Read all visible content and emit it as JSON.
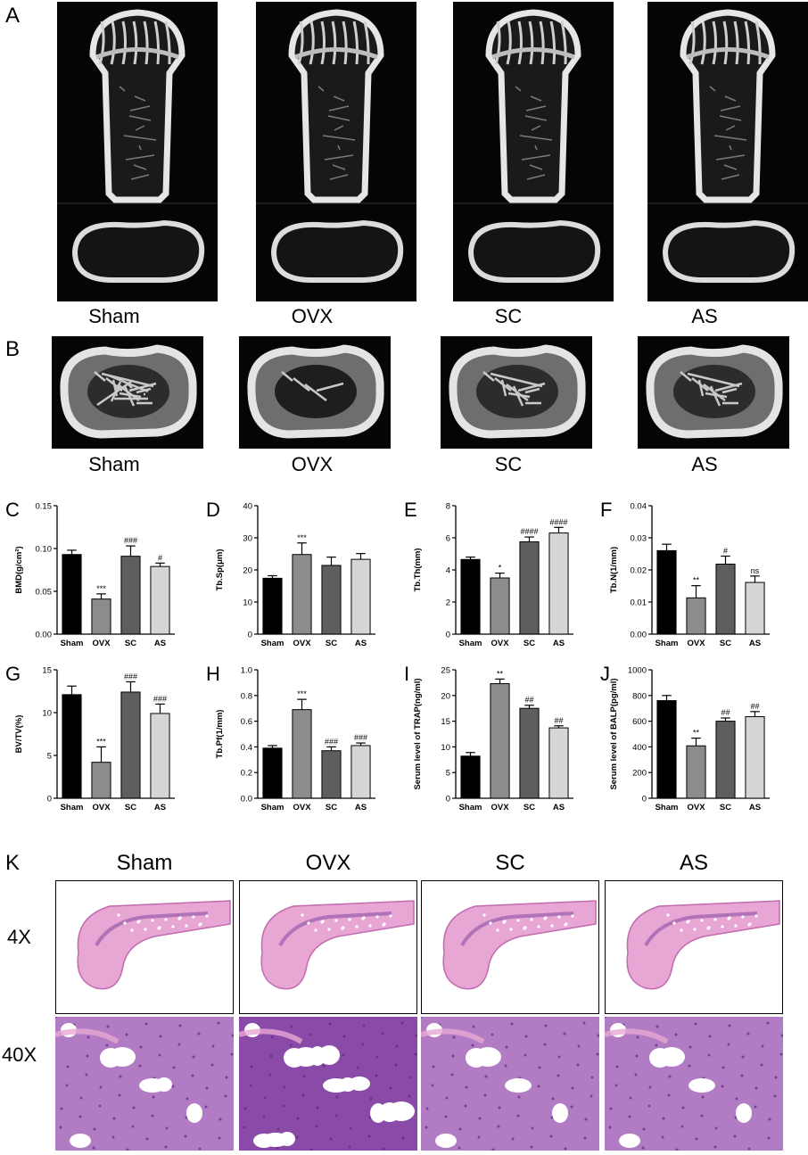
{
  "panels": {
    "A": {
      "label": "A",
      "groups": [
        "Sham",
        "OVX",
        "SC",
        "AS"
      ]
    },
    "B": {
      "label": "B",
      "groups": [
        "Sham",
        "OVX",
        "SC",
        "AS"
      ]
    },
    "K": {
      "label": "K",
      "groups": [
        "Sham",
        "OVX",
        "SC",
        "AS"
      ],
      "rows": [
        "4X",
        "40X"
      ]
    }
  },
  "colors": {
    "sham": "#000000",
    "ovx": "#8c8c8c",
    "sc": "#5e5e5e",
    "as": "#d6d6d6",
    "he_pink": "#e7a6d3",
    "he_purple": "#7a3f9b"
  },
  "chart_data": [
    {
      "label": "C",
      "type": "bar",
      "categories": [
        "Sham",
        "OVX",
        "SC",
        "AS"
      ],
      "values": [
        0.093,
        0.041,
        0.091,
        0.079
      ],
      "errors": [
        0.005,
        0.006,
        0.012,
        0.004
      ],
      "sig": [
        "",
        "***",
        "###",
        "#"
      ],
      "ylabel": "BMD(g/cm²)",
      "ylim": [
        0,
        0.15
      ],
      "ticks": [
        0.0,
        0.05,
        0.1,
        0.15
      ],
      "tick_labels": [
        "0.00",
        "0.05",
        "0.10",
        "0.15"
      ]
    },
    {
      "label": "D",
      "type": "bar",
      "categories": [
        "Sham",
        "OVX",
        "SC",
        "AS"
      ],
      "values": [
        17.4,
        24.8,
        21.4,
        23.3
      ],
      "errors": [
        0.8,
        3.6,
        2.6,
        1.8
      ],
      "sig": [
        "",
        "***",
        "",
        ""
      ],
      "ylabel": "Tb.Sp(μm)",
      "ylim": [
        0,
        40
      ],
      "ticks": [
        0,
        10,
        20,
        30,
        40
      ],
      "tick_labels": [
        "0",
        "10",
        "20",
        "30",
        "40"
      ]
    },
    {
      "label": "E",
      "type": "bar",
      "categories": [
        "Sham",
        "OVX",
        "SC",
        "AS"
      ],
      "values": [
        4.65,
        3.5,
        5.75,
        6.3
      ],
      "errors": [
        0.15,
        0.3,
        0.3,
        0.35
      ],
      "sig": [
        "",
        "*",
        "####",
        "####"
      ],
      "ylabel": "Tb.Th(mm)",
      "ylim": [
        0,
        8
      ],
      "ticks": [
        0,
        2,
        4,
        6,
        8
      ],
      "tick_labels": [
        "0",
        "2",
        "4",
        "6",
        "8"
      ]
    },
    {
      "label": "F",
      "type": "bar",
      "categories": [
        "Sham",
        "OVX",
        "SC",
        "AS"
      ],
      "values": [
        0.026,
        0.0113,
        0.0218,
        0.0161
      ],
      "errors": [
        0.002,
        0.0038,
        0.0025,
        0.002
      ],
      "sig": [
        "",
        "**",
        "#",
        "ns"
      ],
      "ylabel": "Tb.N(1/mm)",
      "ylim": [
        0,
        0.04
      ],
      "ticks": [
        0.0,
        0.01,
        0.02,
        0.03,
        0.04
      ],
      "tick_labels": [
        "0.00",
        "0.01",
        "0.02",
        "0.03",
        "0.04"
      ]
    },
    {
      "label": "G",
      "type": "bar",
      "categories": [
        "Sham",
        "OVX",
        "SC",
        "AS"
      ],
      "values": [
        12.1,
        4.2,
        12.4,
        9.9
      ],
      "errors": [
        1.0,
        1.8,
        1.2,
        1.1
      ],
      "sig": [
        "",
        "***",
        "###",
        "###"
      ],
      "ylabel": "BV/TV(%)",
      "ylim": [
        0,
        15
      ],
      "ticks": [
        0,
        5,
        10,
        15
      ],
      "tick_labels": [
        "0",
        "5",
        "10",
        "15"
      ]
    },
    {
      "label": "H",
      "type": "bar",
      "categories": [
        "Sham",
        "OVX",
        "SC",
        "AS"
      ],
      "values": [
        0.39,
        0.69,
        0.37,
        0.41
      ],
      "errors": [
        0.02,
        0.08,
        0.03,
        0.02
      ],
      "sig": [
        "",
        "***",
        "###",
        "###"
      ],
      "ylabel": "Tb.Pf(1/mm)",
      "ylim": [
        0,
        1.0
      ],
      "ticks": [
        0.0,
        0.2,
        0.4,
        0.6,
        0.8,
        1.0
      ],
      "tick_labels": [
        "0.0",
        "0.2",
        "0.4",
        "0.6",
        "0.8",
        "1.0"
      ]
    },
    {
      "label": "I",
      "type": "bar",
      "categories": [
        "Sham",
        "OVX",
        "SC",
        "AS"
      ],
      "values": [
        8.2,
        22.3,
        17.5,
        13.7
      ],
      "errors": [
        0.7,
        0.9,
        0.6,
        0.4
      ],
      "sig": [
        "",
        "**",
        "##",
        "##"
      ],
      "ylabel": "Serum level of TRAP(ng/ml)",
      "ylim": [
        0,
        25
      ],
      "ticks": [
        0,
        5,
        10,
        15,
        20,
        25
      ],
      "tick_labels": [
        "0",
        "5",
        "10",
        "15",
        "20",
        "25"
      ]
    },
    {
      "label": "J",
      "type": "bar",
      "categories": [
        "Sham",
        "OVX",
        "SC",
        "AS"
      ],
      "values": [
        760,
        408,
        600,
        635
      ],
      "errors": [
        40,
        60,
        25,
        40
      ],
      "sig": [
        "",
        "**",
        "##",
        "##"
      ],
      "ylabel": "Serum level of BALP(pg/ml)",
      "ylim": [
        0,
        1000
      ],
      "ticks": [
        0,
        200,
        400,
        600,
        800,
        1000
      ],
      "tick_labels": [
        "0",
        "200",
        "400",
        "600",
        "800",
        "1000"
      ]
    }
  ]
}
